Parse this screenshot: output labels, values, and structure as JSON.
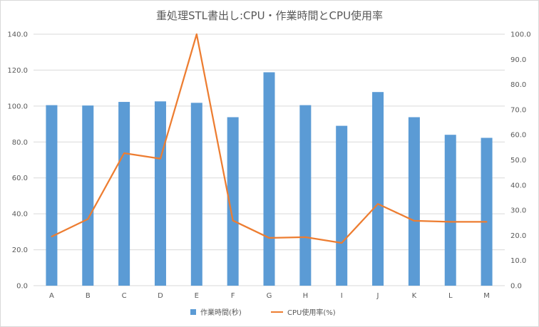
{
  "chart_data": {
    "type": "bar+line",
    "title": "重処理STL書出し:CPU・作業時間とCPU使用率",
    "categories": [
      "A",
      "B",
      "C",
      "D",
      "E",
      "F",
      "G",
      "H",
      "I",
      "J",
      "K",
      "L",
      "M"
    ],
    "series": [
      {
        "name": "作業時間(秒)",
        "type": "bar",
        "axis": "left",
        "color": "#5b9bd5",
        "values": [
          100.5,
          100.3,
          102.3,
          102.6,
          101.8,
          93.8,
          118.8,
          100.5,
          89.0,
          107.8,
          93.8,
          84.0,
          82.3
        ]
      },
      {
        "name": "CPU使用率(%)",
        "type": "line",
        "axis": "right",
        "color": "#ed7d31",
        "values": [
          19.5,
          26.5,
          52.7,
          50.5,
          100.0,
          25.9,
          19.0,
          19.3,
          17.0,
          32.5,
          25.8,
          25.4,
          25.4
        ]
      }
    ],
    "yleft": {
      "min": 0,
      "max": 140,
      "step": 20,
      "ticks": [
        "0.0",
        "20.0",
        "40.0",
        "60.0",
        "80.0",
        "100.0",
        "120.0",
        "140.0"
      ]
    },
    "yright": {
      "min": 0,
      "max": 100,
      "step": 10,
      "ticks": [
        "0.0",
        "10.0",
        "20.0",
        "30.0",
        "40.0",
        "50.0",
        "60.0",
        "70.0",
        "80.0",
        "90.0",
        "100.0"
      ]
    },
    "grid": true,
    "legend_position": "bottom"
  }
}
